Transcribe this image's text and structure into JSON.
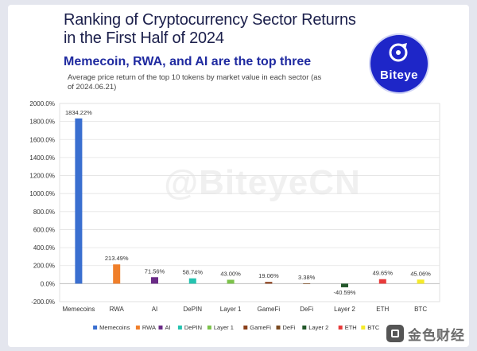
{
  "header": {
    "title": "Ranking of Cryptocurrency Sector Returns in the First Half of 2024",
    "subtitle": "Memecoin, RWA, and AI are the top three",
    "note": "Average price return of the top 10 tokens by market value in each sector (as of 2024.06.21)"
  },
  "logo": {
    "word": "Biteye",
    "icon": "biteye-mark-icon"
  },
  "watermark": "@BiteyeCN",
  "source_brand": {
    "text": "金色财经",
    "icon": "jinse-logo-icon"
  },
  "chart_data": {
    "type": "bar",
    "title": "Ranking of Cryptocurrency Sector Returns in the First Half of 2024",
    "categories": [
      "Memecoins",
      "RWA",
      "AI",
      "DePIN",
      "Layer 1",
      "GameFi",
      "DeFi",
      "Layer 2",
      "ETH",
      "BTC"
    ],
    "values": [
      1834.22,
      213.49,
      71.56,
      58.74,
      43.0,
      19.06,
      3.38,
      -40.59,
      49.65,
      45.06
    ],
    "value_labels": [
      "1834.22%",
      "213.49%",
      "71.56%",
      "58.74%",
      "43.00%",
      "19.06%",
      "3.38%",
      "-40.59%",
      "49.65%",
      "45.06%"
    ],
    "colors": [
      "#3a6fd0",
      "#f07f2a",
      "#6a2b86",
      "#25c3b0",
      "#7cc24a",
      "#8a3f1a",
      "#7a4a20",
      "#23572a",
      "#e83a3a",
      "#f5ea2a"
    ],
    "legend_labels": [
      "Memecoins",
      "RWA",
      "AI",
      "DePIN",
      "Layer 1",
      "GameFi",
      "DeFi",
      "Layer 2",
      "ETH",
      "BTC"
    ],
    "yticks": [
      "2000.0%",
      "1800.0%",
      "1600.0%",
      "1400.0%",
      "1200.0%",
      "1000.0%",
      "800.0%",
      "600.0%",
      "400.0%",
      "200.0%",
      "0.0%",
      "-200.0%"
    ],
    "ytick_values": [
      2000,
      1800,
      1600,
      1400,
      1200,
      1000,
      800,
      600,
      400,
      200,
      0,
      -200
    ],
    "ylim": [
      -200,
      2000
    ],
    "grid": true,
    "legend": "bottom",
    "xlabel": "",
    "ylabel": ""
  }
}
